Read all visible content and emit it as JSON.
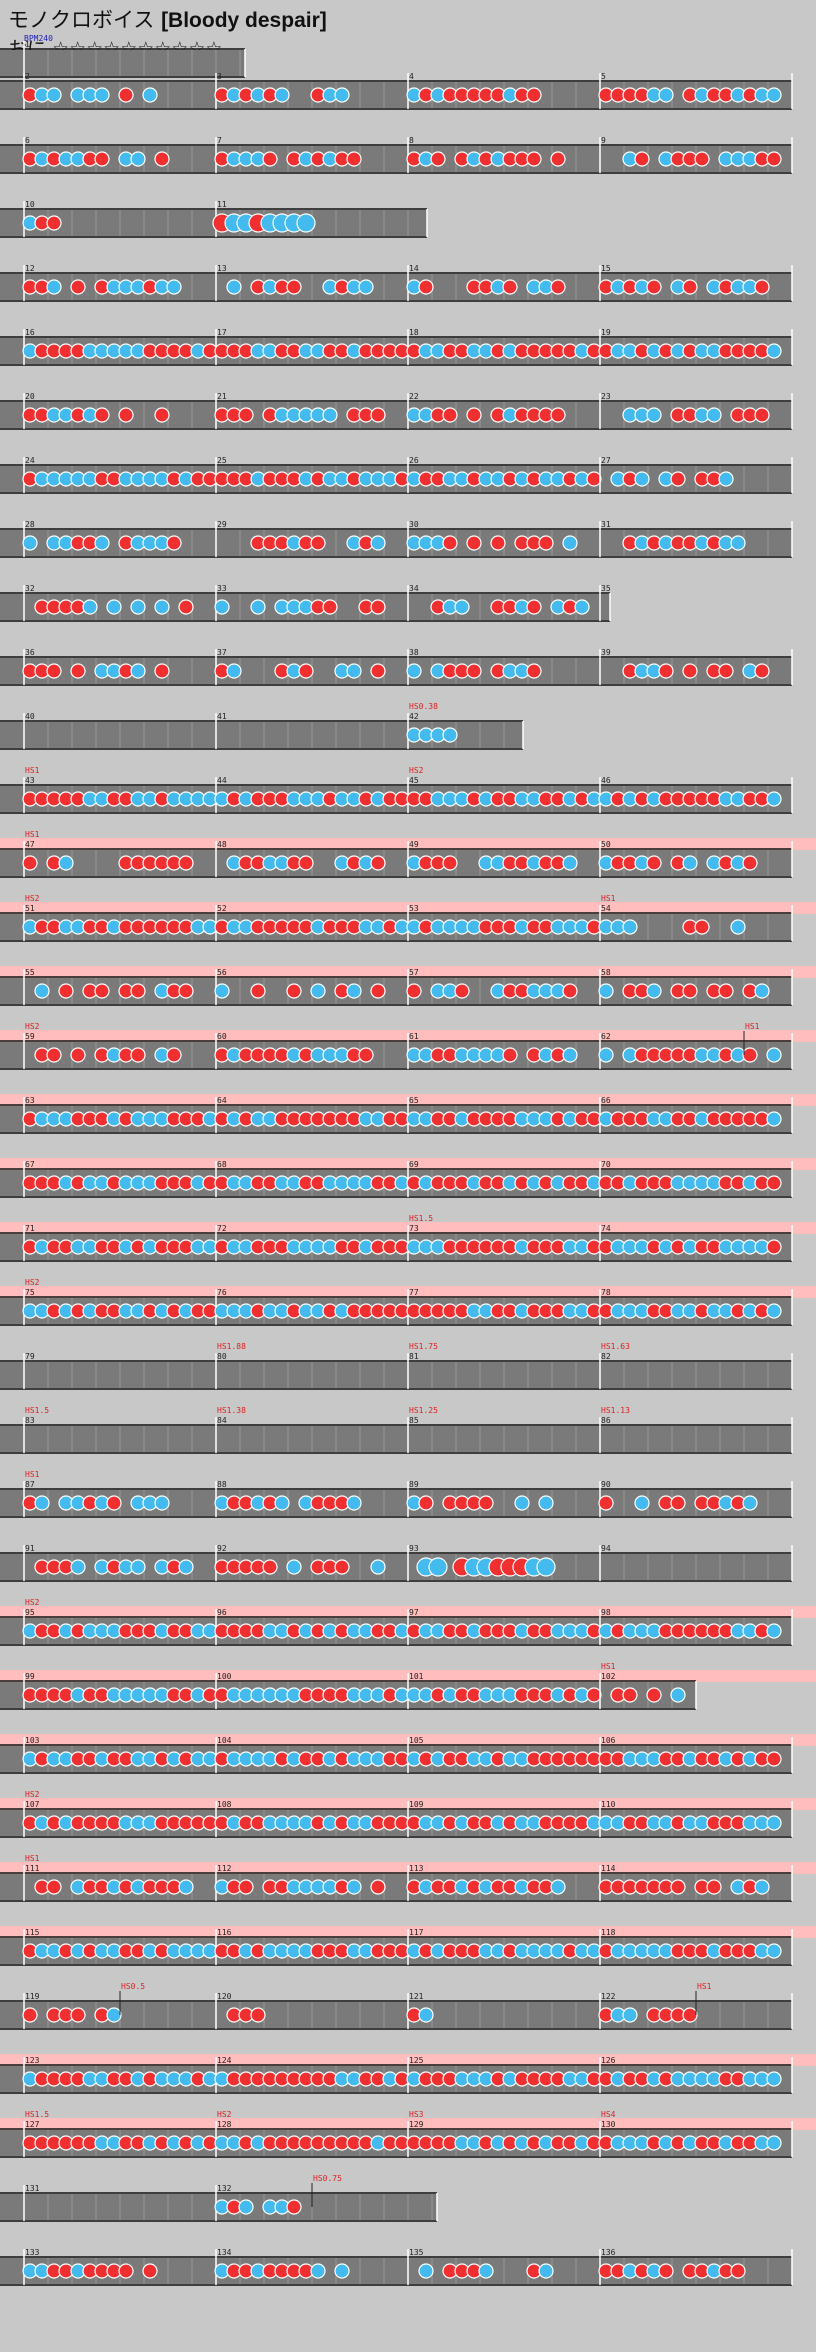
{
  "song": {
    "title_jp": "モノクロボイス",
    "title_en": "[Bloody despair]",
    "difficulty": "おに",
    "stars": "☆☆☆☆☆☆☆☆☆☆"
  },
  "colors": {
    "background": "#c8c8c8",
    "lane": "#7a7a7a",
    "don": "#f03030",
    "ka": "#44bbee",
    "gogo": "#ffbdbd",
    "scroll_label": "#e02020",
    "bpm_label": "#2020c0"
  },
  "bpm_label": "BPM240",
  "rows": [
    {
      "measures": [
        {
          "n": "1",
          "fill": 0
        }
      ],
      "short": 1.15
    },
    {
      "measures": [
        {
          "n": "2",
          "fill": 0.7
        },
        {
          "n": "3",
          "fill": 0.8
        },
        {
          "n": "4",
          "fill": 0.7
        },
        {
          "n": "5",
          "fill": 0.95
        }
      ]
    },
    {
      "measures": [
        {
          "n": "6",
          "fill": 0.8
        },
        {
          "n": "7",
          "fill": 0.8
        },
        {
          "n": "8",
          "fill": 0.95
        },
        {
          "n": "9",
          "fill": 0.95
        }
      ]
    },
    {
      "measures": [
        {
          "n": "10",
          "fill": 0.3
        },
        {
          "n": "11",
          "fill": 0.5,
          "big": true
        }
      ],
      "short": 2.1
    },
    {
      "measures": [
        {
          "n": "12",
          "fill": 0.85
        },
        {
          "n": "13",
          "fill": 0.9
        },
        {
          "n": "14",
          "fill": 0.85
        },
        {
          "n": "15",
          "fill": 0.9
        }
      ]
    },
    {
      "measures": [
        {
          "n": "16",
          "fill": 1
        },
        {
          "n": "17",
          "fill": 1
        },
        {
          "n": "18",
          "fill": 1
        },
        {
          "n": "19",
          "fill": 1
        }
      ]
    },
    {
      "measures": [
        {
          "n": "20",
          "fill": 0.85
        },
        {
          "n": "21",
          "fill": 0.9
        },
        {
          "n": "22",
          "fill": 0.85
        },
        {
          "n": "23",
          "fill": 0.9
        }
      ]
    },
    {
      "measures": [
        {
          "n": "24",
          "fill": 1
        },
        {
          "n": "25",
          "fill": 1
        },
        {
          "n": "26",
          "fill": 1
        },
        {
          "n": "27",
          "fill": 0.8
        }
      ]
    },
    {
      "measures": [
        {
          "n": "28",
          "fill": 0.9
        },
        {
          "n": "29",
          "fill": 0.9
        },
        {
          "n": "30",
          "fill": 0.9
        },
        {
          "n": "31",
          "fill": 0.8
        }
      ]
    },
    {
      "measures": [
        {
          "n": "32",
          "fill": 0.9
        },
        {
          "n": "33",
          "fill": 0.95
        },
        {
          "n": "34",
          "fill": 0.95
        },
        {
          "n": "35",
          "fill": 0
        }
      ],
      "short": 3.05
    },
    {
      "measures": [
        {
          "n": "36",
          "fill": 0.8
        },
        {
          "n": "37",
          "fill": 0.9
        },
        {
          "n": "38",
          "fill": 0.85
        },
        {
          "n": "39",
          "fill": 0.9
        }
      ]
    },
    {
      "measures": [
        {
          "n": "40",
          "fill": 0
        },
        {
          "n": "41",
          "fill": 0
        },
        {
          "n": "42",
          "fill": 0.3
        }
      ],
      "short": 2.6,
      "scroll": [
        {
          "m": 2,
          "t": "HS0.38"
        }
      ]
    },
    {
      "measures": [
        {
          "n": "43",
          "fill": 1
        },
        {
          "n": "44",
          "fill": 1
        },
        {
          "n": "45",
          "fill": 1
        },
        {
          "n": "46",
          "fill": 1
        }
      ],
      "scroll": [
        {
          "m": 0,
          "t": "HS1"
        },
        {
          "m": 2,
          "t": "HS2"
        }
      ]
    },
    {
      "measures": [
        {
          "n": "47",
          "fill": 0.9
        },
        {
          "n": "48",
          "fill": 0.9
        },
        {
          "n": "49",
          "fill": 0.9
        },
        {
          "n": "50",
          "fill": 0.9
        }
      ],
      "gogo": true,
      "scroll": [
        {
          "m": 0,
          "t": "HS1"
        }
      ]
    },
    {
      "measures": [
        {
          "n": "51",
          "fill": 1
        },
        {
          "n": "52",
          "fill": 1
        },
        {
          "n": "53",
          "fill": 1
        },
        {
          "n": "54",
          "fill": 0.8
        }
      ],
      "gogo": true,
      "scroll": [
        {
          "m": 0,
          "t": "HS2"
        },
        {
          "m": 3,
          "t": "HS1"
        }
      ]
    },
    {
      "measures": [
        {
          "n": "55",
          "fill": 0.9
        },
        {
          "n": "56",
          "fill": 0.9
        },
        {
          "n": "57",
          "fill": 0.9
        },
        {
          "n": "58",
          "fill": 0.95
        }
      ],
      "gogo": true
    },
    {
      "measures": [
        {
          "n": "59",
          "fill": 0.9
        },
        {
          "n": "60",
          "fill": 0.9
        },
        {
          "n": "61",
          "fill": 0.9
        },
        {
          "n": "62",
          "fill": 0.95
        }
      ],
      "gogo": true,
      "scroll": [
        {
          "m": 0,
          "t": "HS2"
        },
        {
          "m": 3.75,
          "t": "HS1"
        }
      ]
    },
    {
      "measures": [
        {
          "n": "63",
          "fill": 1
        },
        {
          "n": "64",
          "fill": 1
        },
        {
          "n": "65",
          "fill": 1
        },
        {
          "n": "66",
          "fill": 1
        }
      ],
      "gogo": true
    },
    {
      "measures": [
        {
          "n": "67",
          "fill": 1
        },
        {
          "n": "68",
          "fill": 1
        },
        {
          "n": "69",
          "fill": 1
        },
        {
          "n": "70",
          "fill": 1
        }
      ],
      "gogo": true
    },
    {
      "measures": [
        {
          "n": "71",
          "fill": 1
        },
        {
          "n": "72",
          "fill": 1
        },
        {
          "n": "73",
          "fill": 1
        },
        {
          "n": "74",
          "fill": 1
        }
      ],
      "gogo": true,
      "scroll": [
        {
          "m": 2,
          "t": "HS1.5"
        }
      ]
    },
    {
      "measures": [
        {
          "n": "75",
          "fill": 1
        },
        {
          "n": "76",
          "fill": 1
        },
        {
          "n": "77",
          "fill": 1
        },
        {
          "n": "78",
          "fill": 1
        }
      ],
      "gogo": true,
      "scroll": [
        {
          "m": 0,
          "t": "HS2"
        }
      ]
    },
    {
      "measures": [
        {
          "n": "79",
          "fill": 0
        },
        {
          "n": "80",
          "fill": 0
        },
        {
          "n": "81",
          "fill": 0
        },
        {
          "n": "82",
          "fill": 0
        }
      ],
      "scroll": [
        {
          "m": 1,
          "t": "HS1.88"
        },
        {
          "m": 2,
          "t": "HS1.75"
        },
        {
          "m": 3,
          "t": "HS1.63"
        }
      ]
    },
    {
      "measures": [
        {
          "n": "83",
          "fill": 0
        },
        {
          "n": "84",
          "fill": 0
        },
        {
          "n": "85",
          "fill": 0
        },
        {
          "n": "86",
          "fill": 0
        }
      ],
      "scroll": [
        {
          "m": 0,
          "t": "HS1.5"
        },
        {
          "m": 1,
          "t": "HS1.38"
        },
        {
          "m": 2,
          "t": "HS1.25"
        },
        {
          "m": 3,
          "t": "HS1.13"
        }
      ]
    },
    {
      "measures": [
        {
          "n": "87",
          "fill": 0.8
        },
        {
          "n": "88",
          "fill": 0.8
        },
        {
          "n": "89",
          "fill": 0.8
        },
        {
          "n": "90",
          "fill": 0.9
        }
      ],
      "scroll": [
        {
          "m": 0,
          "t": "HS1"
        }
      ]
    },
    {
      "measures": [
        {
          "n": "91",
          "fill": 0.9
        },
        {
          "n": "92",
          "fill": 0.9
        },
        {
          "n": "93",
          "fill": 0.8,
          "big": true
        },
        {
          "n": "94",
          "fill": 0
        }
      ]
    },
    {
      "measures": [
        {
          "n": "95",
          "fill": 1
        },
        {
          "n": "96",
          "fill": 1
        },
        {
          "n": "97",
          "fill": 1
        },
        {
          "n": "98",
          "fill": 1
        }
      ],
      "gogo": true,
      "scroll": [
        {
          "m": 0,
          "t": "HS2"
        }
      ]
    },
    {
      "measures": [
        {
          "n": "99",
          "fill": 1
        },
        {
          "n": "100",
          "fill": 1
        },
        {
          "n": "101",
          "fill": 1
        },
        {
          "n": "102",
          "fill": 0.5
        }
      ],
      "short": 3.5,
      "gogo": true,
      "scroll": [
        {
          "m": 3,
          "t": "HS1"
        }
      ]
    },
    {
      "measures": [
        {
          "n": "103",
          "fill": 1
        },
        {
          "n": "104",
          "fill": 1
        },
        {
          "n": "105",
          "fill": 1
        },
        {
          "n": "106",
          "fill": 1
        }
      ],
      "gogo": true
    },
    {
      "measures": [
        {
          "n": "107",
          "fill": 1
        },
        {
          "n": "108",
          "fill": 1
        },
        {
          "n": "109",
          "fill": 1
        },
        {
          "n": "110",
          "fill": 1
        }
      ],
      "gogo": true,
      "scroll": [
        {
          "m": 0,
          "t": "HS2"
        }
      ]
    },
    {
      "measures": [
        {
          "n": "111",
          "fill": 0.9
        },
        {
          "n": "112",
          "fill": 0.9
        },
        {
          "n": "113",
          "fill": 0.9
        },
        {
          "n": "114",
          "fill": 0.9
        }
      ],
      "gogo": true,
      "scroll": [
        {
          "m": 0,
          "t": "HS1"
        }
      ]
    },
    {
      "measures": [
        {
          "n": "115",
          "fill": 1
        },
        {
          "n": "116",
          "fill": 1
        },
        {
          "n": "117",
          "fill": 1
        },
        {
          "n": "118",
          "fill": 1
        }
      ],
      "gogo": true
    },
    {
      "measures": [
        {
          "n": "119",
          "fill": 0.5
        },
        {
          "n": "120",
          "fill": 0.3
        },
        {
          "n": "121",
          "fill": 0.3
        },
        {
          "n": "122",
          "fill": 0.5
        }
      ],
      "scroll": [
        {
          "m": 0.5,
          "t": "HS0.5"
        },
        {
          "m": 3.5,
          "t": "HS1"
        }
      ]
    },
    {
      "measures": [
        {
          "n": "123",
          "fill": 1
        },
        {
          "n": "124",
          "fill": 1
        },
        {
          "n": "125",
          "fill": 1
        },
        {
          "n": "126",
          "fill": 1
        }
      ],
      "gogo": true
    },
    {
      "measures": [
        {
          "n": "127",
          "fill": 1
        },
        {
          "n": "128",
          "fill": 1
        },
        {
          "n": "129",
          "fill": 1
        },
        {
          "n": "130",
          "fill": 1
        }
      ],
      "gogo": true,
      "scroll": [
        {
          "m": 0,
          "t": "HS1.5"
        },
        {
          "m": 1,
          "t": "HS2"
        },
        {
          "m": 2,
          "t": "HS3"
        },
        {
          "m": 3,
          "t": "HS4"
        }
      ]
    },
    {
      "measures": [
        {
          "n": "131",
          "fill": 0
        },
        {
          "n": "132",
          "fill": 0.5
        }
      ],
      "short": 2.15,
      "scroll": [
        {
          "m": 1.5,
          "t": "HS0.75"
        }
      ]
    },
    {
      "measures": [
        {
          "n": "133",
          "fill": 0.8
        },
        {
          "n": "134",
          "fill": 0.8
        },
        {
          "n": "135",
          "fill": 0.8
        },
        {
          "n": "136",
          "fill": 0.8
        }
      ]
    }
  ]
}
